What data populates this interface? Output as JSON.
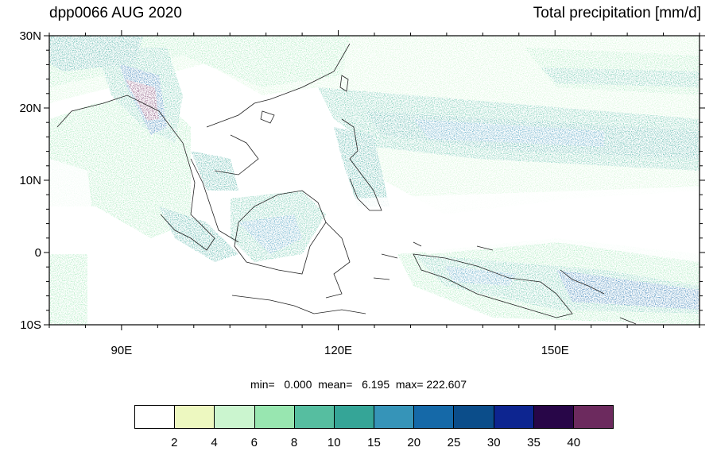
{
  "header": {
    "left_title": "dpp0066 AUG 2020",
    "right_title": "Total precipitation [mm/d]"
  },
  "axes": {
    "lon_range": [
      80,
      170
    ],
    "lat_range": [
      -10,
      30
    ],
    "lat_ticks": [
      {
        "value": 30,
        "label": "30N"
      },
      {
        "value": 20,
        "label": "20N"
      },
      {
        "value": 10,
        "label": "10N"
      },
      {
        "value": 0,
        "label": "0"
      },
      {
        "value": -10,
        "label": "10S"
      }
    ],
    "lon_ticks": [
      {
        "value": 90,
        "label": "90E"
      },
      {
        "value": 120,
        "label": "120E"
      },
      {
        "value": 150,
        "label": "150E"
      }
    ]
  },
  "stats": {
    "text": "min=   0.000  mean=   6.195  max= 222.607"
  },
  "colorbar": {
    "colors": [
      "#ffffff",
      "#edf8c0",
      "#cbf5cf",
      "#98e6b0",
      "#56bea0",
      "#35a597",
      "#3694b8",
      "#1569a8",
      "#0b4d8a",
      "#0d2590",
      "#280648",
      "#6c2a5e"
    ],
    "labels": [
      "2",
      "4",
      "6",
      "8",
      "10",
      "15",
      "20",
      "25",
      "30",
      "35",
      "40"
    ]
  }
}
